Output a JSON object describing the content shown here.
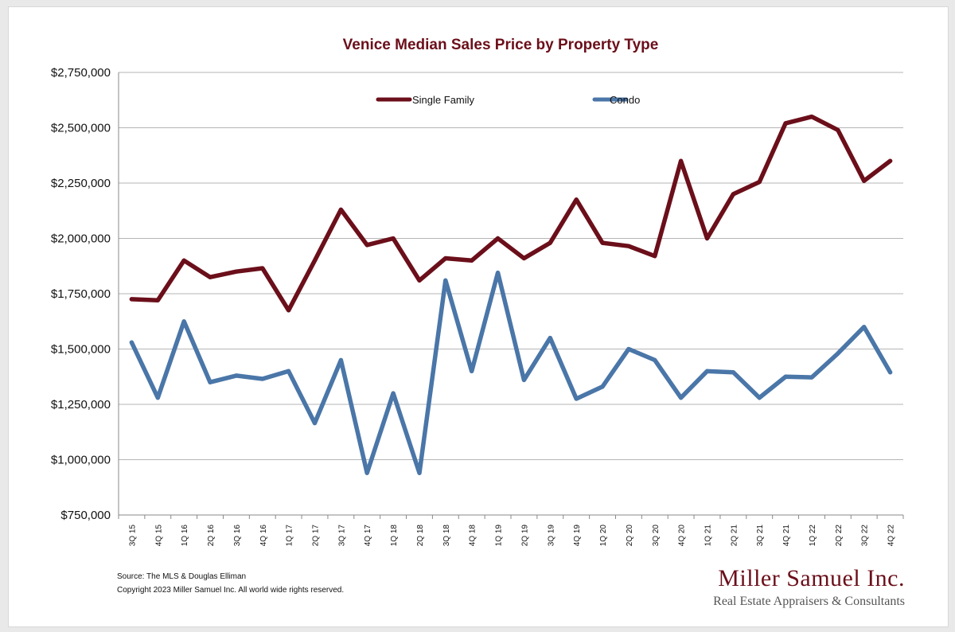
{
  "chart_data": {
    "type": "line",
    "title": "Venice Median Sales Price by Property Type",
    "x": [
      "3Q 15",
      "4Q 15",
      "1Q 16",
      "2Q 16",
      "3Q 16",
      "4Q 16",
      "1Q 17",
      "2Q 17",
      "3Q 17",
      "4Q 17",
      "1Q 18",
      "2Q 18",
      "3Q 18",
      "4Q 18",
      "1Q 19",
      "2Q 19",
      "3Q 19",
      "4Q 19",
      "1Q 20",
      "2Q 20",
      "3Q 20",
      "4Q 20",
      "1Q 21",
      "2Q 21",
      "3Q 21",
      "4Q 21",
      "1Q 22",
      "2Q 22",
      "3Q 22",
      "4Q 22"
    ],
    "series": [
      {
        "name": "Single Family",
        "color": "#6b0f1a",
        "values": [
          1725000,
          1720000,
          1900000,
          1825000,
          1850000,
          1865000,
          1675000,
          1900000,
          2130000,
          1970000,
          2000000,
          1810000,
          1910000,
          1900000,
          2000000,
          1910000,
          1980000,
          2175000,
          1980000,
          1965000,
          1920000,
          2350000,
          2000000,
          2200000,
          2255000,
          2520000,
          2550000,
          2490000,
          2260000,
          2350000
        ]
      },
      {
        "name": "Condo",
        "color": "#4a76a8",
        "values": [
          1530000,
          1280000,
          1625000,
          1350000,
          1380000,
          1365000,
          1400000,
          1165000,
          1450000,
          940000,
          1300000,
          940000,
          1810000,
          1400000,
          1845000,
          1360000,
          1550000,
          1275000,
          1330000,
          1500000,
          1450000,
          1280000,
          1400000,
          1395000,
          1280000,
          1375000,
          1372000,
          1480000,
          1600000,
          1395000
        ]
      }
    ],
    "ylim": [
      750000,
      2750000
    ],
    "yticks": [
      "$2,750,000",
      "$2,500,000",
      "$2,250,000",
      "$2,000,000",
      "$1,750,000",
      "$1,500,000",
      "$1,250,000",
      "$1,000,000",
      "$750,000"
    ],
    "grid": true,
    "legend_position": "top"
  },
  "title_color": "#6b0f1a",
  "footnote": {
    "source": "Source: The MLS & Douglas Elliman",
    "copyright": "Copyright 2023 Miller Samuel Inc.  All world wide rights reserved."
  },
  "brand": {
    "name": "Miller Samuel Inc.",
    "tagline": "Real Estate Appraisers & Consultants",
    "color": "#6b0f1a"
  }
}
